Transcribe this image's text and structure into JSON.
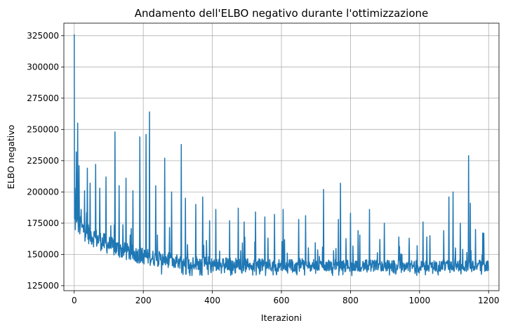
{
  "chart_data": {
    "type": "line",
    "title": "Andamento dell'ELBO negativo durante l'ottimizzazione",
    "xlabel": "Iterazioni",
    "ylabel": "ELBO negativo",
    "xlim": [
      -30,
      1230
    ],
    "ylim": [
      121000,
      335000
    ],
    "xticks": [
      0,
      200,
      400,
      600,
      800,
      1000,
      1200
    ],
    "yticks": [
      125000,
      150000,
      175000,
      200000,
      225000,
      250000,
      275000,
      300000,
      325000
    ],
    "grid": true,
    "series_color": "#1f77b4",
    "series": [
      {
        "values_note": "",
        "x_start": 0,
        "x_end": 1200,
        "peaks": [
          [
            0,
            326000
          ],
          [
            2,
            203000
          ],
          [
            4,
            180000
          ],
          [
            6,
            232000
          ],
          [
            8,
            178000
          ],
          [
            10,
            255000
          ],
          [
            12,
            168000
          ],
          [
            14,
            221000
          ],
          [
            20,
            186000
          ],
          [
            30,
            201000
          ],
          [
            38,
            219000
          ],
          [
            46,
            207000
          ],
          [
            62,
            222000
          ],
          [
            74,
            203000
          ],
          [
            92,
            212000
          ],
          [
            118,
            248000
          ],
          [
            130,
            205000
          ],
          [
            150,
            211000
          ],
          [
            170,
            201000
          ],
          [
            190,
            244000
          ],
          [
            208,
            246000
          ],
          [
            218,
            264000
          ],
          [
            236,
            205000
          ],
          [
            262,
            227000
          ],
          [
            282,
            200000
          ],
          [
            310,
            238000
          ],
          [
            322,
            195000
          ],
          [
            352,
            190000
          ],
          [
            372,
            196000
          ],
          [
            392,
            177000
          ],
          [
            410,
            186000
          ],
          [
            450,
            177000
          ],
          [
            475,
            187000
          ],
          [
            492,
            176000
          ],
          [
            525,
            184000
          ],
          [
            552,
            180000
          ],
          [
            580,
            182000
          ],
          [
            605,
            186000
          ],
          [
            650,
            178000
          ],
          [
            670,
            181000
          ],
          [
            722,
            202000
          ],
          [
            765,
            178000
          ],
          [
            771,
            207000
          ],
          [
            800,
            183000
          ],
          [
            822,
            169000
          ],
          [
            855,
            186000
          ],
          [
            885,
            162000
          ],
          [
            898,
            175000
          ],
          [
            940,
            164000
          ],
          [
            970,
            163000
          ],
          [
            1010,
            176000
          ],
          [
            1030,
            165000
          ],
          [
            1070,
            169000
          ],
          [
            1085,
            196000
          ],
          [
            1097,
            200000
          ],
          [
            1118,
            175000
          ],
          [
            1142,
            229000
          ],
          [
            1147,
            191000
          ],
          [
            1162,
            170000
          ],
          [
            1186,
            167000
          ]
        ]
      }
    ]
  }
}
